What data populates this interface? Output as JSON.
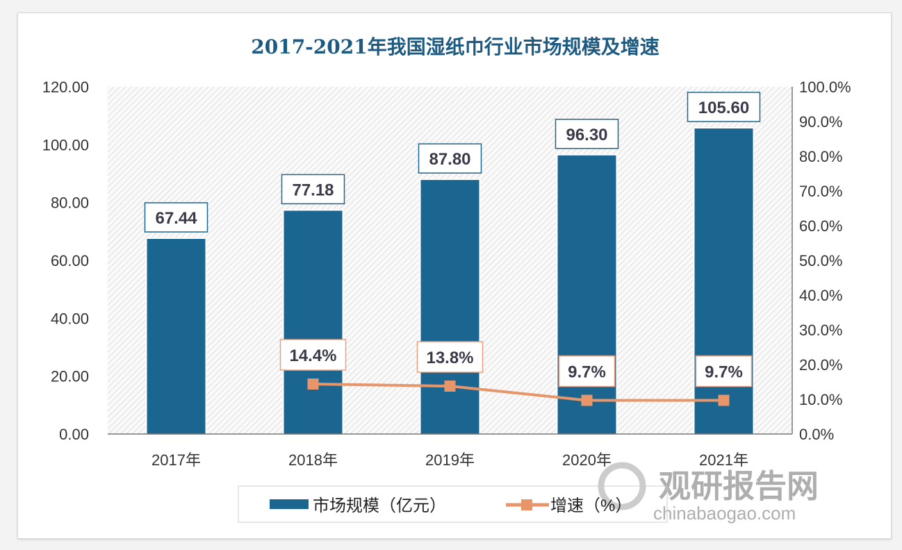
{
  "chart_data": {
    "type": "bar+line",
    "title": "2017-2021年我国湿纸巾行业市场规模及增速",
    "categories": [
      "2017年",
      "2018年",
      "2019年",
      "2020年",
      "2021年"
    ],
    "series": [
      {
        "name": "市场规模（亿元）",
        "type": "bar",
        "axis": "left",
        "values": [
          67.44,
          77.18,
          87.8,
          96.3,
          105.6
        ],
        "labels": [
          "67.44",
          "77.18",
          "87.80",
          "96.30",
          "105.60"
        ],
        "color": "#1b6690"
      },
      {
        "name": "增速（%）",
        "type": "line",
        "axis": "right",
        "values": [
          null,
          14.4,
          13.8,
          9.7,
          9.7
        ],
        "labels": [
          "",
          "14.4%",
          "13.8%",
          "9.7%",
          "9.7%"
        ],
        "color": "#e8956a"
      }
    ],
    "left_axis": {
      "ylim": [
        0,
        120
      ],
      "ticks": [
        "0.00",
        "20.00",
        "40.00",
        "60.00",
        "80.00",
        "100.00",
        "120.00"
      ]
    },
    "right_axis": {
      "ylim": [
        0,
        100
      ],
      "ticks": [
        "0.0%",
        "10.0%",
        "20.0%",
        "30.0%",
        "40.0%",
        "50.0%",
        "60.0%",
        "70.0%",
        "80.0%",
        "90.0%",
        "100.0%"
      ]
    },
    "legend": "bottom",
    "grid": false
  },
  "watermark": {
    "cn": "观研报告网",
    "en": "chinabaogao.com"
  }
}
